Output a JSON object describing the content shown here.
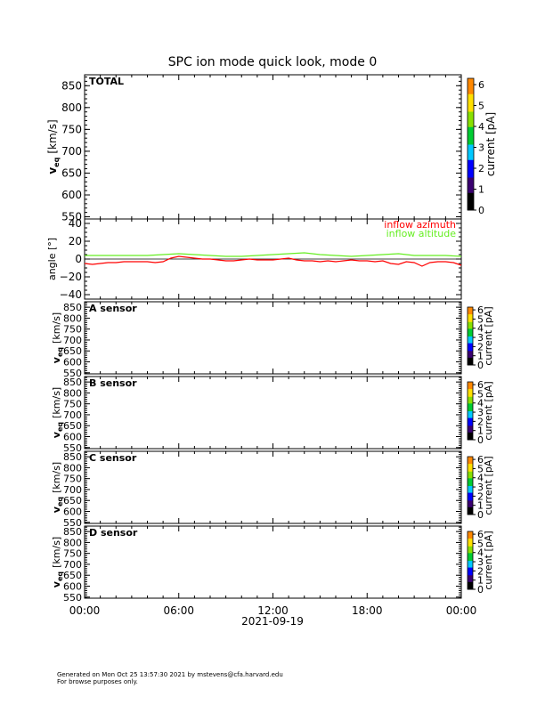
{
  "title": "SPC ion mode quick look, mode 0",
  "date_label": "2021-09-19",
  "time_ticks": [
    "00:00",
    "06:00",
    "12:00",
    "18:00",
    "00:00"
  ],
  "footer": {
    "line1": "Generated on Mon Oct 25 13:57:30 2021 by mstevens@cfa.harvard.edu",
    "line2": "For browse purposes only."
  },
  "colors": {
    "azimuth": "#ff0000",
    "altitude": "#66ee22",
    "colorbar": [
      "#000000",
      "#3a0070",
      "#0000ff",
      "#00c8ff",
      "#00cc33",
      "#88e000",
      "#ffe000",
      "#ff8800",
      "#ff0000"
    ]
  },
  "chart_data": [
    {
      "type": "heatmap",
      "panel": "TOTAL",
      "ylabel_main": "v",
      "ylabel_sub": "eq",
      "ylabel_unit": "[km/s]",
      "ylim": [
        545,
        875
      ],
      "yticks": [
        "550",
        "600",
        "650",
        "700",
        "750",
        "800",
        "850"
      ],
      "xlim_hours": [
        0,
        24
      ],
      "colorbar": {
        "label": "current  [pA]",
        "range": [
          0,
          6.3
        ],
        "ticks": [
          "0",
          "1",
          "2",
          "3",
          "4",
          "5",
          "6"
        ]
      },
      "values": []
    },
    {
      "type": "line",
      "ylabel": "angle  [°]",
      "ylim": [
        -45,
        45
      ],
      "yticks": [
        "−40",
        "−20",
        "0",
        "20",
        "40"
      ],
      "xlim_hours": [
        0,
        24
      ],
      "reference_line": 0,
      "series": [
        {
          "name": "inflow azimuth",
          "x": [
            0,
            0.5,
            1,
            1.5,
            2,
            2.5,
            3,
            3.5,
            4,
            4.5,
            5,
            5.5,
            6,
            6.5,
            7,
            7.5,
            8,
            8.5,
            9,
            9.5,
            10,
            10.5,
            11,
            11.5,
            12,
            12.5,
            13,
            13.5,
            14,
            14.5,
            15,
            15.5,
            16,
            16.5,
            17,
            17.5,
            18,
            18.5,
            19,
            19.5,
            20,
            20.5,
            21,
            21.5,
            22,
            22.5,
            23,
            23.5,
            24
          ],
          "y": [
            -5,
            -6,
            -5,
            -4,
            -4,
            -3,
            -3,
            -3,
            -3,
            -4,
            -3,
            1,
            3,
            2,
            1,
            0,
            0,
            -1,
            -2,
            -2,
            -1,
            0,
            -1,
            -1,
            -1,
            0,
            1,
            -1,
            -2,
            -2,
            -3,
            -2,
            -3,
            -2,
            -1,
            -2,
            -2,
            -3,
            -2,
            -5,
            -6,
            -3,
            -4,
            -8,
            -4,
            -3,
            -3,
            -4,
            -7
          ]
        },
        {
          "name": "inflow altitude",
          "x": [
            0,
            1,
            2,
            3,
            4,
            5,
            6,
            7,
            8,
            9,
            10,
            11,
            12,
            13,
            14,
            15,
            16,
            17,
            18,
            19,
            20,
            21,
            22,
            23,
            24
          ],
          "y": [
            4,
            4,
            4,
            4,
            4,
            5,
            6,
            5,
            4,
            3,
            3,
            4,
            5,
            6,
            7,
            5,
            4,
            3,
            4,
            5,
            6,
            4,
            4,
            4,
            3
          ]
        }
      ]
    },
    {
      "type": "heatmap",
      "panel": "A sensor",
      "ylabel_main": "v",
      "ylabel_sub": "eq",
      "ylabel_unit": "[km/s]",
      "ylim": [
        545,
        875
      ],
      "yticks": [
        "550",
        "600",
        "650",
        "700",
        "750",
        "800",
        "850"
      ],
      "xlim_hours": [
        0,
        24
      ],
      "colorbar": {
        "label": "current  [pA]",
        "range": [
          0,
          6.3
        ],
        "ticks": [
          "0",
          "1",
          "2",
          "3",
          "4",
          "5",
          "6"
        ]
      },
      "values": []
    },
    {
      "type": "heatmap",
      "panel": "B sensor",
      "ylabel_main": "v",
      "ylabel_sub": "eq",
      "ylabel_unit": "[km/s]",
      "ylim": [
        545,
        875
      ],
      "yticks": [
        "550",
        "600",
        "650",
        "700",
        "750",
        "800",
        "850"
      ],
      "xlim_hours": [
        0,
        24
      ],
      "colorbar": {
        "label": "current  [pA]",
        "range": [
          0,
          6.3
        ],
        "ticks": [
          "0",
          "1",
          "2",
          "3",
          "4",
          "5",
          "6"
        ]
      },
      "values": []
    },
    {
      "type": "heatmap",
      "panel": "C sensor",
      "ylabel_main": "v",
      "ylabel_sub": "eq",
      "ylabel_unit": "[km/s]",
      "ylim": [
        545,
        875
      ],
      "yticks": [
        "550",
        "600",
        "650",
        "700",
        "750",
        "800",
        "850"
      ],
      "xlim_hours": [
        0,
        24
      ],
      "colorbar": {
        "label": "current  [pA]",
        "range": [
          0,
          6.3
        ],
        "ticks": [
          "0",
          "1",
          "2",
          "3",
          "4",
          "5",
          "6"
        ]
      },
      "values": []
    },
    {
      "type": "heatmap",
      "panel": "D sensor",
      "ylabel_main": "v",
      "ylabel_sub": "eq",
      "ylabel_unit": "[km/s]",
      "ylim": [
        545,
        875
      ],
      "yticks": [
        "550",
        "600",
        "650",
        "700",
        "750",
        "800",
        "850"
      ],
      "xlim_hours": [
        0,
        24
      ],
      "colorbar": {
        "label": "current  [pA]",
        "range": [
          0,
          6.3
        ],
        "ticks": [
          "0",
          "1",
          "2",
          "3",
          "4",
          "5",
          "6"
        ]
      },
      "values": []
    }
  ]
}
